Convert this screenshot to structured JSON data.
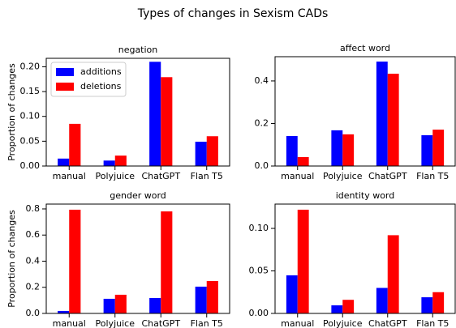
{
  "title": "Types of changes in Sexism CADs",
  "chart_data": [
    {
      "type": "bar",
      "title": "negation",
      "ylabel": "Proportion of changes",
      "categories": [
        "manual",
        "Polyjuice",
        "ChatGPT",
        "Flan T5"
      ],
      "series": [
        {
          "name": "additions",
          "color": "#0000ff",
          "values": [
            0.015,
            0.011,
            0.21,
            0.049
          ]
        },
        {
          "name": "deletions",
          "color": "#ff0000",
          "values": [
            0.085,
            0.021,
            0.179,
            0.06
          ]
        }
      ],
      "ylim": [
        0,
        0.217
      ],
      "yticks": [
        {
          "value": 0,
          "label": "0.00"
        },
        {
          "value": 0.05,
          "label": "0.05"
        },
        {
          "value": 0.1,
          "label": "0.10"
        },
        {
          "value": 0.15,
          "label": "0.15"
        },
        {
          "value": 0.2,
          "label": "0.20"
        }
      ],
      "legend": "upper left"
    },
    {
      "type": "bar",
      "title": "affect word",
      "categories": [
        "manual",
        "Polyjuice",
        "ChatGPT",
        "Flan T5"
      ],
      "series": [
        {
          "name": "additions",
          "color": "#0000ff",
          "values": [
            0.141,
            0.168,
            0.491,
            0.145
          ]
        },
        {
          "name": "deletions",
          "color": "#ff0000",
          "values": [
            0.042,
            0.149,
            0.434,
            0.171
          ]
        }
      ],
      "ylim": [
        0,
        0.514
      ],
      "yticks": [
        {
          "value": 0,
          "label": "0.0"
        },
        {
          "value": 0.2,
          "label": "0.2"
        },
        {
          "value": 0.4,
          "label": "0.4"
        }
      ]
    },
    {
      "type": "bar",
      "title": "gender word",
      "ylabel": "Proportion of changes",
      "categories": [
        "manual",
        "Polyjuice",
        "ChatGPT",
        "Flan T5"
      ],
      "series": [
        {
          "name": "additions",
          "color": "#0000ff",
          "values": [
            0.019,
            0.112,
            0.118,
            0.205
          ]
        },
        {
          "name": "deletions",
          "color": "#ff0000",
          "values": [
            0.794,
            0.143,
            0.781,
            0.248
          ]
        }
      ],
      "ylim": [
        0,
        0.837
      ],
      "yticks": [
        {
          "value": 0,
          "label": "0.0"
        },
        {
          "value": 0.2,
          "label": "0.2"
        },
        {
          "value": 0.4,
          "label": "0.4"
        },
        {
          "value": 0.6,
          "label": "0.6"
        },
        {
          "value": 0.8,
          "label": "0.8"
        }
      ]
    },
    {
      "type": "bar",
      "title": "identity word",
      "categories": [
        "manual",
        "Polyjuice",
        "ChatGPT",
        "Flan T5"
      ],
      "series": [
        {
          "name": "additions",
          "color": "#0000ff",
          "values": [
            0.0448,
            0.0095,
            0.03,
            0.019
          ]
        },
        {
          "name": "deletions",
          "color": "#ff0000",
          "values": [
            0.122,
            0.016,
            0.092,
            0.025
          ]
        }
      ],
      "ylim": [
        0,
        0.1286
      ],
      "yticks": [
        {
          "value": 0,
          "label": "0.00"
        },
        {
          "value": 0.05,
          "label": "0.05"
        },
        {
          "value": 0.1,
          "label": "0.10"
        }
      ]
    }
  ]
}
